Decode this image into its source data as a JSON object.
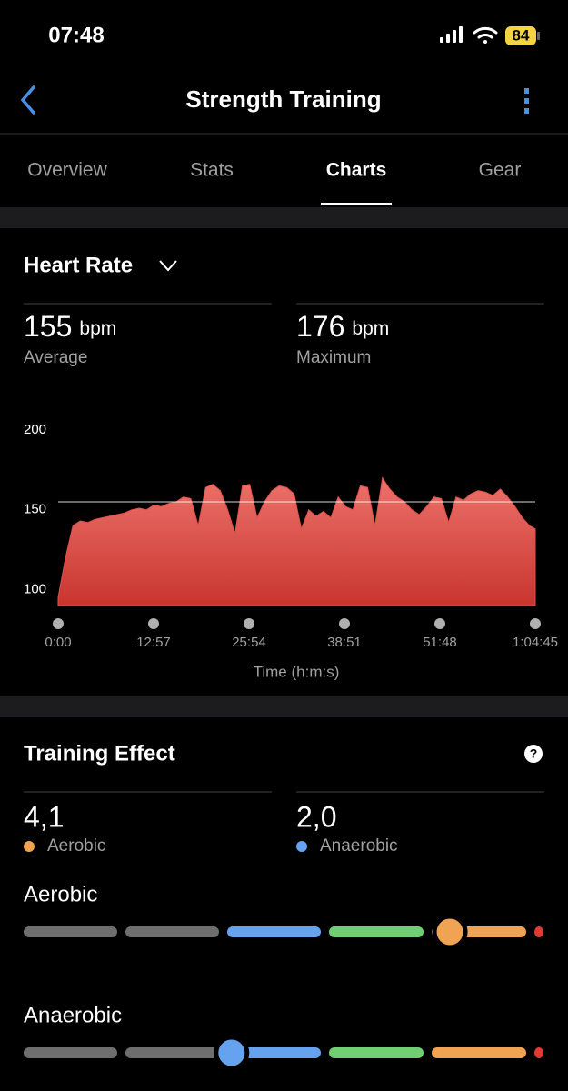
{
  "status_bar": {
    "time": "07:48",
    "battery": "84"
  },
  "nav": {
    "title": "Strength Training"
  },
  "tabs": [
    "Overview",
    "Stats",
    "Charts",
    "Gear"
  ],
  "heart_rate": {
    "title": "Heart Rate",
    "average": {
      "value": 155,
      "unit": "bpm",
      "label": "Average"
    },
    "maximum": {
      "value": 176,
      "unit": "bpm",
      "label": "Maximum"
    }
  },
  "chart_data": {
    "type": "area",
    "x_label": "Time (h:m:s)",
    "x": [
      0,
      60,
      120,
      180,
      240,
      300,
      360,
      420,
      480,
      540,
      600,
      660,
      720,
      780,
      840,
      900,
      960,
      1020,
      1080,
      1140,
      1200,
      1260,
      1320,
      1380,
      1440,
      1500,
      1560,
      1620,
      1680,
      1740,
      1800,
      1860,
      1920,
      1980,
      2040,
      2100,
      2160,
      2220,
      2280,
      2340,
      2400,
      2460,
      2520,
      2580,
      2640,
      2700,
      2760,
      2820,
      2880,
      2940,
      3000,
      3060,
      3120,
      3180,
      3240,
      3300,
      3360,
      3420,
      3480,
      3540,
      3600,
      3660,
      3720,
      3780,
      3840,
      3885
    ],
    "series": [
      {
        "color": "#e2514a",
        "values": [
          95,
          120,
          140,
          143,
          142,
          144,
          145,
          146,
          147,
          148,
          150,
          151,
          150,
          153,
          152,
          154,
          155,
          158,
          157,
          140,
          164,
          166,
          162,
          150,
          135,
          165,
          166,
          145,
          155,
          162,
          165,
          164,
          160,
          138,
          150,
          146,
          149,
          145,
          158,
          152,
          150,
          165,
          164,
          140,
          170,
          163,
          158,
          155,
          150,
          147,
          152,
          158,
          157,
          142,
          158,
          156,
          160,
          162,
          161,
          159,
          163,
          158,
          152,
          145,
          140,
          138
        ]
      }
    ],
    "xlim": [
      0,
      3885
    ],
    "ylim": [
      90,
      200
    ],
    "xticks": [
      {
        "value": 0,
        "label": "0:00"
      },
      {
        "value": 777,
        "label": "12:57"
      },
      {
        "value": 1554,
        "label": "25:54"
      },
      {
        "value": 2331,
        "label": "38:51"
      },
      {
        "value": 3108,
        "label": "51:48"
      },
      {
        "value": 3885,
        "label": "1:04:45"
      }
    ],
    "yticks": [
      100,
      150,
      200
    ]
  },
  "training_effect": {
    "title": "Training Effect",
    "help": "?",
    "scale": [
      0,
      5
    ],
    "aerobic": {
      "value": 4.1,
      "label": "4,1",
      "name": "Aerobic",
      "color": "#f0a352"
    },
    "anaerobic": {
      "value": 2.0,
      "label": "2,0",
      "name": "Anaerobic",
      "color": "#66a3ef"
    }
  }
}
